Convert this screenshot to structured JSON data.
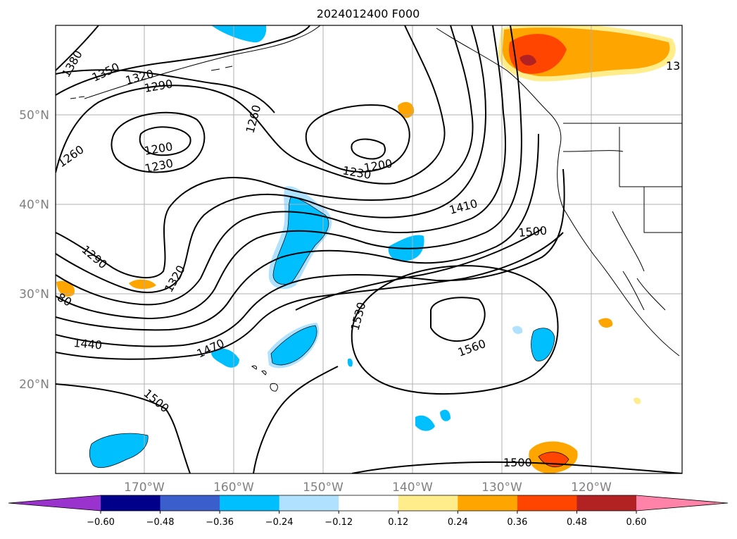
{
  "title": "2024012400 F000",
  "latitude_labels": [
    "50°N",
    "40°N",
    "30°N",
    "20°N"
  ],
  "longitude_labels": [
    "170°W",
    "160°W",
    "150°W",
    "140°W",
    "130°W",
    "120°W"
  ],
  "contour_labels": [
    "1380",
    "1350",
    "1320",
    "1290",
    "1260",
    "1260",
    "1200",
    "1230",
    "1230",
    "1200",
    "1410",
    "1500",
    "1290",
    "1320",
    "1530",
    "1560",
    "1470",
    "1440",
    "1500",
    "1500",
    "80",
    "13"
  ],
  "colorbar": {
    "ticks": [
      "−0.60",
      "−0.48",
      "−0.36",
      "−0.24",
      "−0.12",
      "0.12",
      "0.24",
      "0.36",
      "0.48",
      "0.60"
    ],
    "colors": [
      "#9a32cd",
      "#00008b",
      "#3a5fcd",
      "#00bfff",
      "#b0e2ff",
      "#ffffff",
      "#ffec8b",
      "#ffa500",
      "#ff4500",
      "#b22222",
      "#ff83a8"
    ]
  }
}
